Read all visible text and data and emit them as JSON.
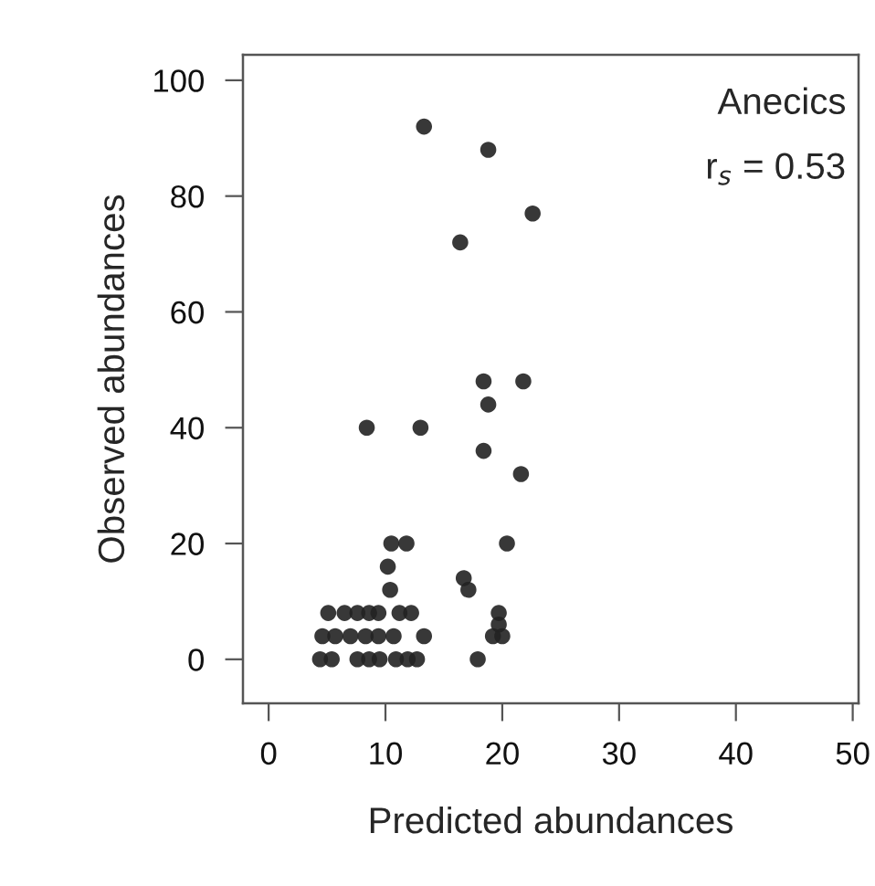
{
  "chart_data": {
    "type": "scatter",
    "xlabel": "Predicted abundances",
    "ylabel": "Observed abundances",
    "annotations": [
      "Anecics",
      "r$_{s}$ = 0.53"
    ],
    "series": [
      {
        "color": "#222222",
        "x": [
          13.3,
          18.8,
          22.6,
          16.4,
          18.4,
          21.8,
          18.8,
          8.4,
          13.0,
          18.4,
          21.6,
          10.5,
          11.8,
          20.4,
          10.2,
          10.4,
          16.7,
          17.1,
          19.7,
          19.7,
          19.2,
          20.0,
          17.9,
          13.3,
          5.1,
          6.5,
          7.6,
          8.6,
          9.4,
          11.2,
          12.2,
          4.6,
          5.7,
          7.0,
          8.3,
          9.4,
          10.7,
          4.4,
          5.4,
          7.6,
          8.6,
          9.5,
          10.9,
          11.9,
          12.7
        ],
        "values": [
          92,
          88,
          77,
          72,
          48,
          48,
          44,
          40,
          40,
          36,
          32,
          20,
          20,
          20,
          16,
          12,
          14,
          12,
          8,
          6,
          4,
          4,
          0,
          4,
          8,
          8,
          8,
          8,
          8,
          8,
          8,
          4,
          4,
          4,
          4,
          4,
          4,
          0,
          0,
          0,
          0,
          0,
          0,
          0,
          0
        ]
      }
    ],
    "xlim": [
      -2.2,
      50.5
    ],
    "ylim": [
      -7.6,
      104.4
    ],
    "xticks": [
      0,
      10,
      20,
      30,
      40,
      50
    ],
    "yticks": [
      0,
      20,
      40,
      60,
      80,
      100
    ],
    "grid": false,
    "legend": false,
    "marker": "circle"
  }
}
